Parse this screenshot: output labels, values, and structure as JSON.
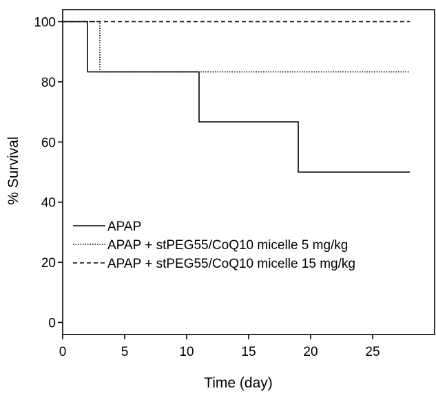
{
  "chart_data": {
    "type": "line",
    "subtype": "kaplan-meier-step",
    "title": "",
    "xlabel": "Time (day)",
    "ylabel": "% Survival",
    "xlim": [
      0,
      30
    ],
    "ylim": [
      -4,
      104
    ],
    "xticks": [
      0,
      5,
      10,
      15,
      20,
      25
    ],
    "yticks": [
      0,
      20,
      40,
      60,
      80,
      100
    ],
    "grid": false,
    "legend_position": "bottom-left",
    "series": [
      {
        "name": "APAP",
        "line_style": "solid",
        "color": "#000000",
        "x": [
          0,
          2,
          11,
          19,
          28
        ],
        "y": [
          100,
          83.3,
          66.7,
          50,
          50
        ]
      },
      {
        "name": "APAP + stPEG55/CoQ10 micelle 5 mg/kg",
        "line_style": "dotted",
        "color": "#000000",
        "x": [
          0,
          3,
          28
        ],
        "y": [
          100,
          83.3,
          83.3
        ]
      },
      {
        "name": "APAP + stPEG55/CoQ10 micelle 15 mg/kg",
        "line_style": "dashed",
        "color": "#000000",
        "x": [
          0,
          28
        ],
        "y": [
          100,
          100
        ]
      }
    ]
  }
}
